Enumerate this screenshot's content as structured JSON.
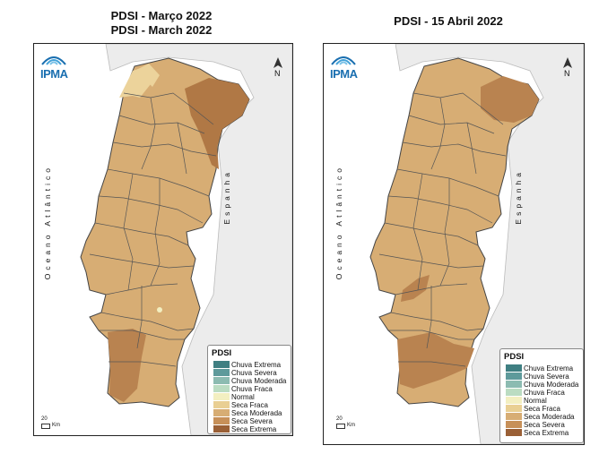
{
  "titles": {
    "left_line1": "PDSI - Março 2022",
    "left_line2": "PDSI - March 2022",
    "right": "PDSI - 15 Abril 2022"
  },
  "map_labels": {
    "ocean": "Oceano Atlântico",
    "spain": "Espanha",
    "north": "N",
    "logo": "IPMA",
    "scale_value": "20",
    "scale_unit": "Km"
  },
  "legend": {
    "title": "PDSI",
    "items": [
      {
        "label": "Chuva Extrema",
        "color": "#3f7f82"
      },
      {
        "label": "Chuva Severa",
        "color": "#5e9a9b"
      },
      {
        "label": "Chuva Moderada",
        "color": "#8cbbb1"
      },
      {
        "label": "Chuva Fraca",
        "color": "#bbdcc2"
      },
      {
        "label": "Normal",
        "color": "#f3efc1"
      },
      {
        "label": "Seca Fraca",
        "color": "#e9cf93"
      },
      {
        "label": "Seca Moderada",
        "color": "#d7ad74"
      },
      {
        "label": "Seca Severa",
        "color": "#c79059"
      },
      {
        "label": "Seca Extrema",
        "color": "#9a6036"
      }
    ]
  }
}
